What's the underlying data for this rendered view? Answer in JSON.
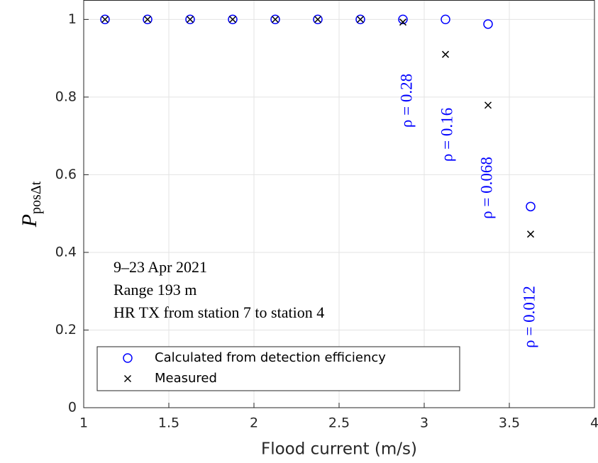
{
  "chart_data": {
    "type": "scatter",
    "xlabel": "Flood current (m/s)",
    "ylabel": "P",
    "ylabel_subscript": "posΔt",
    "x": [
      1.125,
      1.375,
      1.625,
      1.875,
      2.125,
      2.375,
      2.625,
      2.875,
      3.125,
      3.375,
      3.625
    ],
    "series": [
      {
        "name": "Calculated from detection efficiency",
        "color": "#0000ff",
        "marker": "circle",
        "values": [
          1,
          1,
          1,
          1,
          1,
          1,
          1,
          1,
          1,
          0.988,
          0.518
        ]
      },
      {
        "name": "Measured",
        "color": "#000000",
        "marker": "x",
        "values": [
          1,
          1,
          1,
          1,
          1,
          1,
          1,
          0.993,
          0.91,
          0.779,
          0.447
        ]
      }
    ],
    "xlim": [
      1,
      4
    ],
    "xticks": [
      1,
      1.5,
      2,
      2.5,
      3,
      3.5,
      4
    ],
    "ylim": [
      0,
      1.05
    ],
    "yticks": [
      0,
      0.2,
      0.4,
      0.6,
      0.8,
      1
    ],
    "grid": true,
    "legend": "lower left",
    "annotations": [
      "ρ = 0.28",
      "ρ = 0.16",
      "ρ = 0.068",
      "ρ = 0.012"
    ],
    "info_text": [
      "9–23 Apr 2021",
      "Range 193 m",
      "HR TX from station 7 to station 4"
    ]
  }
}
